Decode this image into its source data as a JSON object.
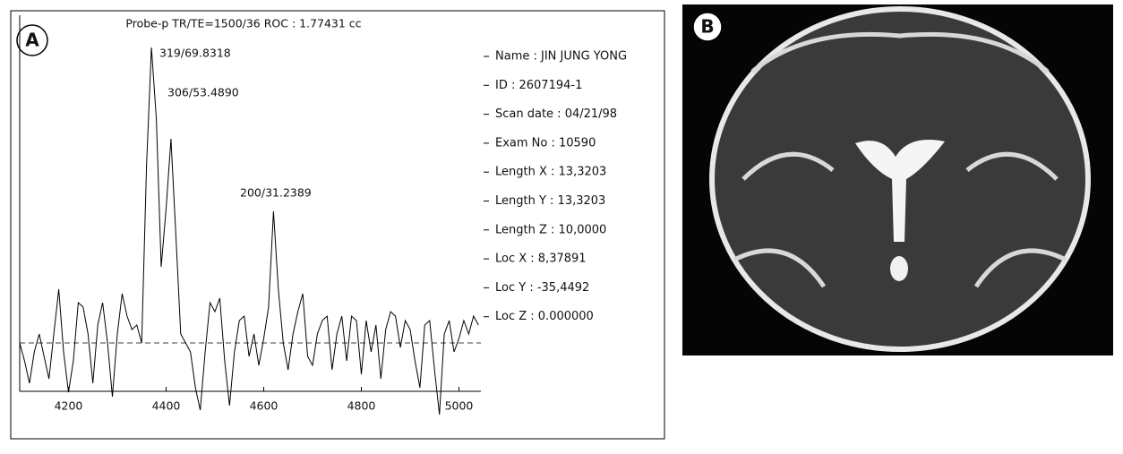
{
  "chart_data": {
    "type": "line",
    "title": "Probe-p TR/TE=1500/36 ROC : 1.77431 cc",
    "panel_labels": [
      "A",
      "B"
    ],
    "x": [
      4100,
      4110,
      4120,
      4130,
      4140,
      4150,
      4160,
      4170,
      4180,
      4190,
      4200,
      4210,
      4220,
      4230,
      4240,
      4250,
      4260,
      4270,
      4280,
      4290,
      4300,
      4310,
      4320,
      4330,
      4340,
      4350,
      4360,
      4370,
      4380,
      4390,
      4400,
      4410,
      4420,
      4430,
      4440,
      4450,
      4460,
      4470,
      4480,
      4490,
      4500,
      4510,
      4520,
      4530,
      4540,
      4550,
      4560,
      4570,
      4580,
      4590,
      4600,
      4610,
      4620,
      4630,
      4640,
      4650,
      4660,
      4670,
      4680,
      4690,
      4700,
      4710,
      4720,
      4730,
      4740,
      4750,
      4760,
      4770,
      4780,
      4790,
      4800,
      4810,
      4820,
      4830,
      4840,
      4850,
      4860,
      4870,
      4880,
      4890,
      4900,
      4910,
      4920,
      4930,
      4940,
      4950,
      4960,
      4970,
      4980,
      4990,
      5000,
      5010,
      5020,
      5030,
      5040
    ],
    "series": [
      {
        "color": "#000000",
        "values": [
          0,
          -20,
          -45,
          -10,
          10,
          -15,
          -40,
          10,
          60,
          -10,
          -55,
          -20,
          45,
          40,
          10,
          -45,
          20,
          45,
          0,
          -60,
          10,
          55,
          30,
          15,
          20,
          0,
          200,
          330,
          250,
          85,
          150,
          228,
          120,
          10,
          0,
          -10,
          -50,
          -75,
          -10,
          45,
          35,
          50,
          -20,
          -70,
          -10,
          25,
          30,
          -15,
          10,
          -25,
          5,
          40,
          147,
          60,
          0,
          -30,
          10,
          35,
          55,
          -15,
          -25,
          10,
          25,
          30,
          -30,
          10,
          30,
          -20,
          30,
          25,
          -35,
          25,
          -10,
          20,
          -40,
          15,
          35,
          30,
          -5,
          25,
          15,
          -20,
          -50,
          20,
          25,
          -30,
          -80,
          10,
          25,
          -10,
          5,
          25,
          10,
          30,
          20
        ]
      }
    ],
    "baseline": 0,
    "xlim": [
      4100,
      5045
    ],
    "ylim": [
      -54,
      336
    ],
    "xticks": [
      4200,
      4400,
      4600,
      4800,
      5000
    ],
    "annotations": [
      "319/69.8318",
      "306/53.4890",
      "200/31.2389"
    ],
    "info": [
      "Name : JIN JUNG YONG",
      "ID : 2607194-1",
      "Scan date : 04/21/98",
      "Exam No : 10590",
      "Length X : 13,3203",
      "Length Y : 13,3203",
      "Length Z : 10,0000",
      "Loc X : 8,37891",
      "Loc Y : -35,4492",
      "Loc Z : 0.000000"
    ]
  }
}
